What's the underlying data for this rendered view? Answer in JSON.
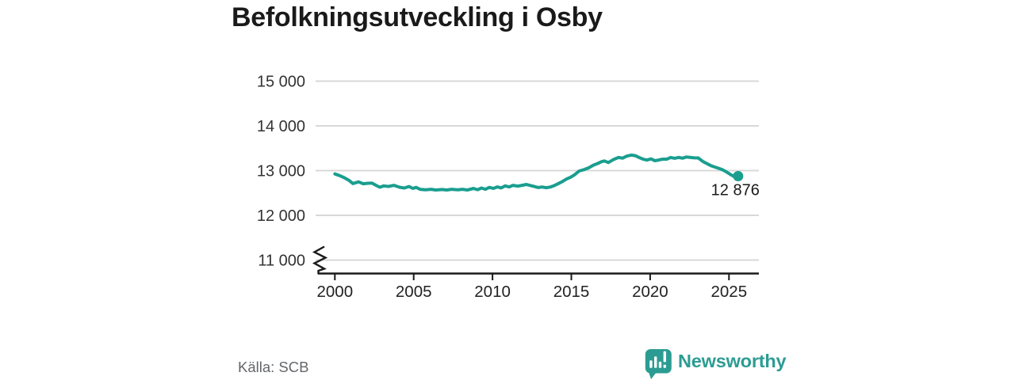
{
  "header": {
    "title": "Befolkningsutveckling i Osby"
  },
  "chart_data": {
    "type": "line",
    "title": "Befolkningsutveckling i Osby",
    "xlabel": "",
    "ylabel": "",
    "ylim": [
      11000,
      15000
    ],
    "xlim": [
      2000,
      2027
    ],
    "grid": "horizontal",
    "legend": "none",
    "axis_break": true,
    "line_color": "#1A9E8F",
    "y_ticks": {
      "values": [
        15000,
        14000,
        13000,
        12000,
        11000
      ],
      "labels": [
        "15 000",
        "14 000",
        "13 000",
        "12 000",
        "11 000"
      ]
    },
    "x_ticks": {
      "values": [
        2000,
        2005,
        2010,
        2015,
        2020,
        2025
      ],
      "labels": [
        "2000",
        "2005",
        "2010",
        "2015",
        "2020",
        "2025"
      ]
    },
    "x": [
      2000.0,
      2000.3,
      2000.6,
      2000.9,
      2001.15,
      2001.5,
      2001.8,
      2002.1,
      2002.35,
      2002.6,
      2002.85,
      2003.1,
      2003.4,
      2003.75,
      2004.1,
      2004.4,
      2004.7,
      2004.95,
      2005.15,
      2005.4,
      2005.75,
      2006.1,
      2006.4,
      2006.8,
      2007.1,
      2007.4,
      2007.8,
      2008.1,
      2008.4,
      2008.8,
      2009.05,
      2009.3,
      2009.55,
      2009.8,
      2010.05,
      2010.3,
      2010.55,
      2010.8,
      2011.05,
      2011.3,
      2011.6,
      2011.9,
      2012.15,
      2012.4,
      2012.65,
      2012.9,
      2013.15,
      2013.4,
      2013.65,
      2013.9,
      2014.15,
      2014.45,
      2014.7,
      2014.95,
      2015.2,
      2015.5,
      2015.8,
      2016.1,
      2016.4,
      2016.7,
      2016.9,
      2017.1,
      2017.35,
      2017.7,
      2018.0,
      2018.25,
      2018.5,
      2018.8,
      2019.05,
      2019.3,
      2019.55,
      2019.8,
      2020.05,
      2020.3,
      2020.55,
      2020.8,
      2021.05,
      2021.3,
      2021.55,
      2021.8,
      2022.05,
      2022.3,
      2022.55,
      2022.8,
      2023.05,
      2023.35,
      2023.6,
      2023.85,
      2024.1,
      2024.35,
      2024.6,
      2024.85,
      2025.08,
      2025.3,
      2025.58
    ],
    "values": [
      12925,
      12888,
      12840,
      12780,
      12710,
      12748,
      12707,
      12716,
      12721,
      12672,
      12629,
      12658,
      12646,
      12671,
      12629,
      12611,
      12645,
      12601,
      12624,
      12583,
      12571,
      12583,
      12566,
      12577,
      12566,
      12583,
      12571,
      12583,
      12566,
      12601,
      12573,
      12611,
      12583,
      12624,
      12601,
      12636,
      12613,
      12659,
      12636,
      12671,
      12653,
      12673,
      12691,
      12668,
      12645,
      12622,
      12634,
      12617,
      12631,
      12662,
      12705,
      12760,
      12812,
      12851,
      12906,
      12991,
      13022,
      13062,
      13122,
      13163,
      13198,
      13216,
      13180,
      13253,
      13293,
      13277,
      13322,
      13347,
      13334,
      13293,
      13255,
      13236,
      13262,
      13221,
      13237,
      13257,
      13254,
      13293,
      13276,
      13293,
      13277,
      13304,
      13293,
      13285,
      13283,
      13201,
      13158,
      13112,
      13079,
      13052,
      13018,
      12968,
      12916,
      12872,
      12876
    ],
    "end_point": {
      "label": "12 876",
      "x": 2025.58,
      "value": 12876
    }
  },
  "footer": {
    "source": "Källa: SCB",
    "brand": "Newsworthy"
  },
  "colors": {
    "line": "#1A9E8F",
    "logo": "#2C9C93",
    "grid": "#D8D8D8",
    "axis": "#1A1A1A",
    "tick_label": "#333333",
    "title": "#1A1A1A",
    "source": "#64666A",
    "background": "#FFFFFF"
  }
}
